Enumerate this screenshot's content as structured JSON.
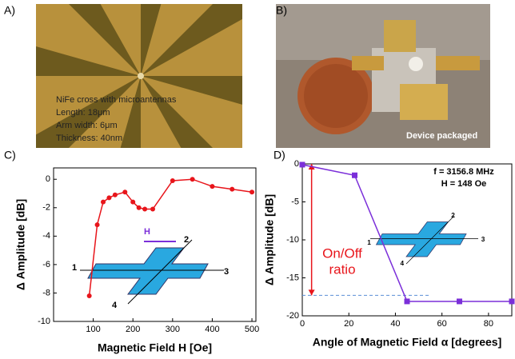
{
  "panel_labels": [
    "A)",
    "B)",
    "C)",
    "D)"
  ],
  "photo_a": {
    "lines": [
      "NiFe cross with microantennas",
      "Length: 18μm",
      "Arm width: 6μm",
      "Thickness: 40nm"
    ]
  },
  "photo_b": {
    "caption": "Device packaged"
  },
  "chart_data": [
    {
      "type": "line",
      "xlabel": "Magnetic Field H [Oe]",
      "ylabel": "Δ Amplitude [dB]",
      "x": [
        90,
        110,
        125,
        140,
        155,
        180,
        200,
        215,
        230,
        250,
        300,
        350,
        400,
        450,
        500
      ],
      "values": [
        -8.2,
        -3.2,
        -1.6,
        -1.3,
        -1.1,
        -0.9,
        -1.6,
        -2.0,
        -2.1,
        -2.1,
        -0.1,
        0.0,
        -0.5,
        -0.7,
        -0.9
      ],
      "color": "#e8151b",
      "marker": "circle",
      "xlim": [
        0,
        510
      ],
      "xticks": [
        100,
        200,
        300,
        400,
        500
      ],
      "ylim": [
        -10,
        0.8
      ],
      "yticks": [
        -10,
        -8,
        -6,
        -4,
        -2,
        0
      ],
      "inset_labels": [
        "H",
        "1",
        "2",
        "3",
        "4"
      ]
    },
    {
      "type": "line",
      "xlabel": "Angle of Magnetic Field α [degrees]",
      "ylabel": "Δ Amplitude [dB]",
      "x": [
        0,
        22.5,
        45,
        67.5,
        90
      ],
      "values": [
        -0.1,
        -1.5,
        -18.1,
        -18.1,
        -18.1
      ],
      "color": "#7b2fd9",
      "marker": "square",
      "xlim": [
        0,
        90
      ],
      "xticks": [
        0,
        20,
        40,
        60,
        80
      ],
      "ylim": [
        -20,
        0
      ],
      "yticks": [
        -20,
        -15,
        -10,
        -5,
        0
      ],
      "annotations": [
        "f = 3156.8 MHz",
        "H = 148 Oe",
        "On/Off",
        "ratio"
      ],
      "reference_line": {
        "y": -17.3,
        "x": [
          0,
          55
        ]
      },
      "arrow": {
        "x": 4,
        "y": [
          0,
          -17.3
        ]
      },
      "inset_labels": [
        "1",
        "2",
        "3",
        "4"
      ]
    }
  ]
}
